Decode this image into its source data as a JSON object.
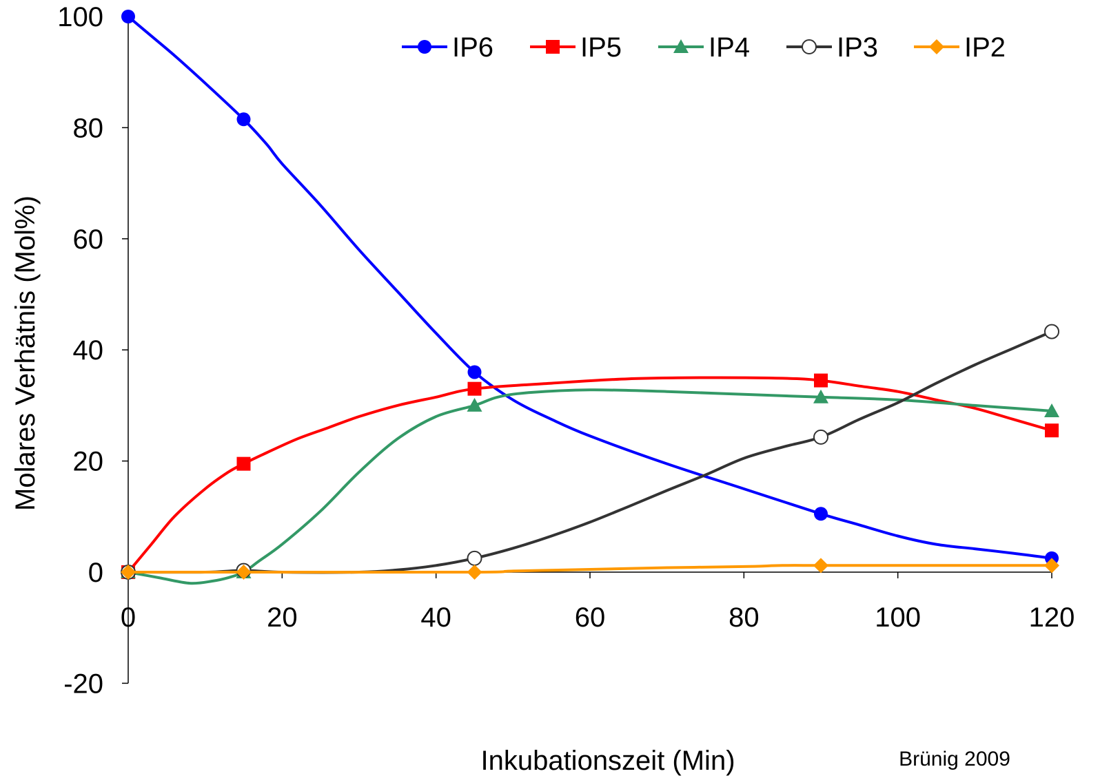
{
  "chart_data": {
    "type": "line",
    "xlabel": "Inkubationszeit (Min)",
    "ylabel": "Molares Verhätnis (Mol%)",
    "credit": "Brünig 2009",
    "xlim": [
      0,
      120
    ],
    "ylim": [
      -20,
      100
    ],
    "xticks": [
      0,
      20,
      40,
      60,
      80,
      100,
      120
    ],
    "yticks": [
      -20,
      0,
      20,
      40,
      60,
      80,
      100
    ],
    "xtick_labels": [
      "0",
      "20",
      "40",
      "60",
      "80",
      "100",
      "120"
    ],
    "ytick_labels": [
      "-20",
      "0",
      "20",
      "40",
      "60",
      "80",
      "100"
    ],
    "grid": false,
    "legend_position": "top-right",
    "series": [
      {
        "name": "IP6",
        "color": "#0000ff",
        "marker": "circle",
        "x": [
          0,
          15,
          45,
          90,
          120
        ],
        "y": [
          100,
          81.5,
          36,
          10.5,
          2.5
        ],
        "curve_x": [
          0,
          3,
          6,
          10,
          15,
          18,
          20,
          25,
          30,
          35,
          40,
          45,
          50,
          55,
          60,
          70,
          80,
          90,
          95,
          100,
          105,
          110,
          115,
          120
        ],
        "curve_y": [
          100,
          96.5,
          93,
          88,
          81.5,
          77,
          73.5,
          66,
          58,
          50.5,
          43,
          36,
          31,
          27.5,
          24.5,
          19.5,
          15,
          10.5,
          8.5,
          6.5,
          5,
          4.2,
          3.4,
          2.5
        ]
      },
      {
        "name": "IP5",
        "color": "#ff0000",
        "marker": "square",
        "x": [
          0,
          15,
          45,
          90,
          120
        ],
        "y": [
          0,
          19.5,
          33,
          34.5,
          25.5
        ],
        "curve_x": [
          0,
          3,
          6,
          10,
          13,
          15,
          18,
          22,
          26,
          30,
          35,
          40,
          45,
          55,
          65,
          75,
          85,
          90,
          95,
          100,
          105,
          110,
          115,
          120
        ],
        "curve_y": [
          0,
          5,
          10,
          15,
          18,
          19.5,
          21.5,
          24,
          26,
          28,
          30,
          31.5,
          33,
          34,
          34.8,
          35,
          34.9,
          34.5,
          33.5,
          32.5,
          31,
          29.5,
          27.5,
          25.5
        ]
      },
      {
        "name": "IP4",
        "color": "#339966",
        "marker": "triangle",
        "x": [
          0,
          15,
          45,
          90,
          120
        ],
        "y": [
          0,
          0,
          30,
          31.5,
          29
        ],
        "curve_x": [
          0,
          4,
          8,
          11,
          13,
          15,
          17,
          20,
          25,
          30,
          35,
          40,
          45,
          48,
          52,
          60,
          70,
          80,
          90,
          100,
          110,
          115,
          120
        ],
        "curve_y": [
          0,
          -1,
          -2,
          -1.6,
          -1,
          0,
          2,
          5,
          11,
          18,
          24,
          28,
          30,
          31.5,
          32.3,
          32.8,
          32.5,
          32,
          31.5,
          31,
          30,
          29.5,
          29
        ]
      },
      {
        "name": "IP3",
        "color": "#333333",
        "marker": "open-circle",
        "x": [
          0,
          15,
          45,
          90,
          120
        ],
        "y": [
          0,
          0.3,
          2.5,
          24.3,
          43.3
        ],
        "curve_x": [
          0,
          10,
          15,
          20,
          30,
          35,
          40,
          45,
          50,
          55,
          60,
          65,
          70,
          75,
          80,
          85,
          90,
          95,
          100,
          105,
          110,
          115,
          120
        ],
        "curve_y": [
          0,
          0,
          0.3,
          0,
          0,
          0.4,
          1.2,
          2.5,
          4.3,
          6.5,
          9,
          11.8,
          14.7,
          17.5,
          20.5,
          22.5,
          24.3,
          27.5,
          30.5,
          34,
          37.3,
          40.3,
          43.3
        ]
      },
      {
        "name": "IP2",
        "color": "#ff9900",
        "marker": "diamond",
        "x": [
          0,
          15,
          45,
          90,
          120
        ],
        "y": [
          0,
          0,
          0,
          1.2,
          1.2
        ],
        "curve_x": [
          0,
          15,
          45,
          50,
          60,
          70,
          80,
          85,
          90,
          100,
          110,
          120
        ],
        "curve_y": [
          0,
          0,
          0,
          0.2,
          0.5,
          0.8,
          1,
          1.2,
          1.2,
          1.2,
          1.2,
          1.2
        ]
      }
    ]
  }
}
